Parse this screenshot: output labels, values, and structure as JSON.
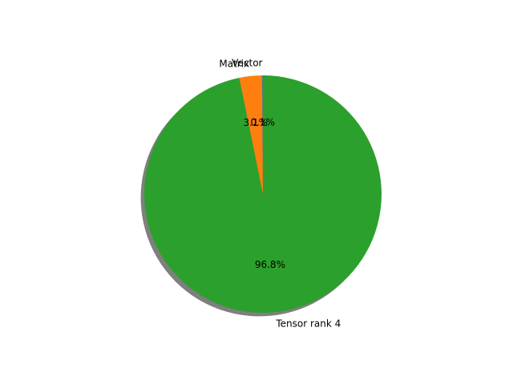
{
  "chart_data": {
    "type": "pie",
    "title": "",
    "labels": [
      "Vector",
      "Matrix",
      "Tensor rank 4"
    ],
    "values": [
      0.1,
      3.1,
      96.8
    ],
    "percent_labels": [
      "0.1%",
      "3.1%",
      "96.8%"
    ],
    "colors": [
      "#1f77b4",
      "#ff7f0e",
      "#2ca02c"
    ],
    "start_angle_deg": 90,
    "direction": "counterclockwise",
    "shadow": true,
    "legend": "none"
  }
}
